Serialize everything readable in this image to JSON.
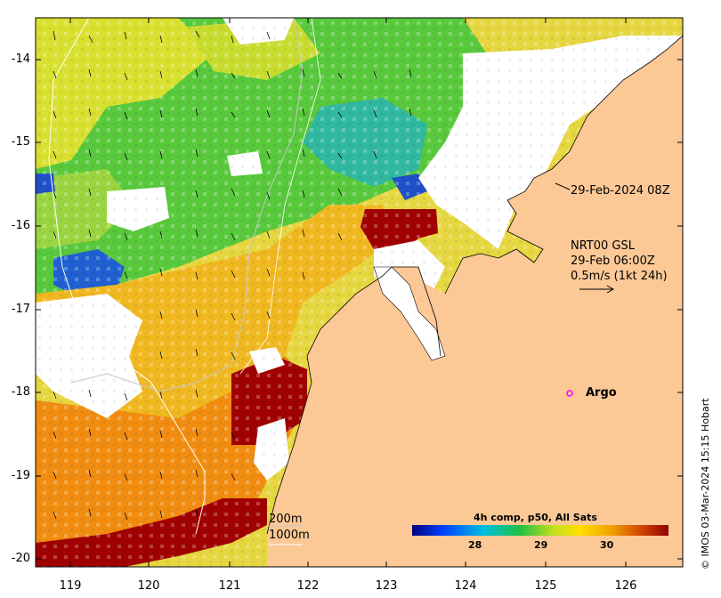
{
  "map": {
    "timestamp_label": "29-Feb-2024 08Z",
    "current_legend": {
      "line1": "NRT00 GSL",
      "line2": "29-Feb 06:00Z",
      "line3": "0.5m/s (1kt 24h)"
    },
    "isobath_labels": [
      "200m",
      "1000m"
    ],
    "argo_label": "Argo",
    "credit": "© IMOS 03-Mar-2024 15:15 Hobart",
    "colorbar": {
      "title": "4h comp, p50, All Sats",
      "ticks": [
        "28",
        "29",
        "30"
      ]
    },
    "y_axis_ticks": [
      "-14",
      "-15",
      "-16",
      "-17",
      "-18",
      "-19",
      "-20"
    ],
    "x_axis_ticks": [
      "119",
      "120",
      "121",
      "122",
      "123",
      "124",
      "125",
      "126"
    ],
    "colors": {
      "land": "#fcc896",
      "cold": "#1040c0",
      "mid": "#20c060",
      "warm": "#f0d000",
      "hot": "#a00000",
      "argo": "#ff00ff"
    }
  }
}
